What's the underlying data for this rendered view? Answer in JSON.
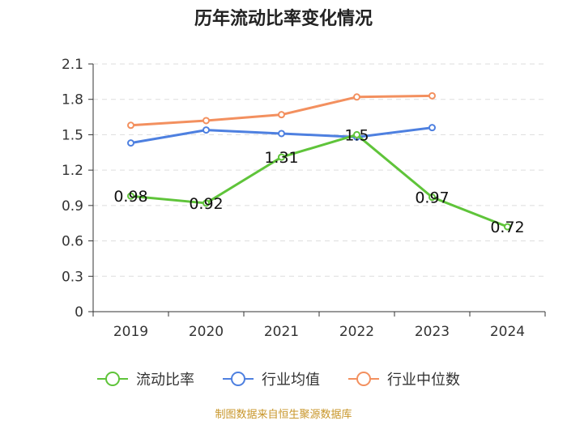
{
  "chart_data": {
    "type": "line",
    "title": "历年流动比率变化情况",
    "categories": [
      "2019",
      "2020",
      "2021",
      "2022",
      "2023",
      "2024"
    ],
    "ylim": [
      0,
      2.1
    ],
    "yticks": [
      "0",
      "0.3",
      "0.6",
      "0.9",
      "1.2",
      "1.5",
      "1.8",
      "2.1"
    ],
    "grid": true,
    "legend_position": "bottom",
    "series": [
      {
        "name": "流动比率",
        "color": "#5fc43a",
        "values": [
          0.98,
          0.92,
          1.31,
          1.5,
          0.97,
          0.72
        ],
        "labels": [
          "0.98",
          "0.92",
          "1.31",
          "1.5",
          "0.97",
          "0.72"
        ]
      },
      {
        "name": "行业均值",
        "color": "#4e80e0",
        "values": [
          1.43,
          1.54,
          1.51,
          1.48,
          1.56,
          null
        ]
      },
      {
        "name": "行业中位数",
        "color": "#f3905f",
        "values": [
          1.58,
          1.62,
          1.67,
          1.82,
          1.83,
          null
        ]
      }
    ],
    "source": "制图数据来自恒生聚源数据库"
  }
}
